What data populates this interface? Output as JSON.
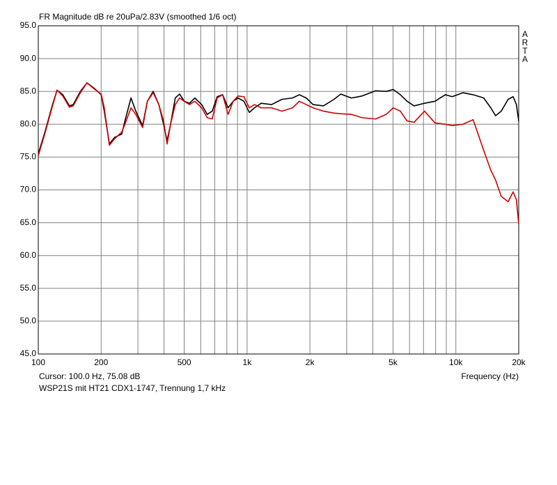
{
  "chart_data": {
    "type": "line",
    "title": "FR Magnitude dB re 20uPa/2.83V (smoothed 1/6 oct)",
    "watermark": "ARTA",
    "x_label": "Frequency (Hz)",
    "annotation": "Cursor: 100.0 Hz, 75.08 dB",
    "subtitle": "WSP21S mit HT21 CDX1-1747, Trennung 1,7 kHz",
    "x_scale": "log",
    "grid": true,
    "xlim": [
      100,
      20000
    ],
    "ylim": [
      45,
      95
    ],
    "xticks": [
      100,
      200,
      500,
      {
        "value": 1000,
        "label": "1k"
      },
      {
        "value": 2000,
        "label": "2k"
      },
      {
        "value": 5000,
        "label": "5k"
      },
      {
        "value": 10000,
        "label": "10k"
      },
      {
        "value": 20000,
        "label": "20k"
      }
    ],
    "xminor_ticks": [
      300,
      400,
      600,
      700,
      800,
      900,
      3000,
      4000,
      6000,
      7000,
      8000,
      9000
    ],
    "yticks": [
      {
        "value": 45,
        "label": "45.0"
      },
      {
        "value": 50,
        "label": "50.0"
      },
      {
        "value": 55,
        "label": "55.0"
      },
      {
        "value": 60,
        "label": "60.0"
      },
      {
        "value": 65,
        "label": "65.0"
      },
      {
        "value": 70,
        "label": "70.0"
      },
      {
        "value": 75,
        "label": "75.0"
      },
      {
        "value": 80,
        "label": "80.0"
      },
      {
        "value": 85,
        "label": "85.0"
      },
      {
        "value": 90,
        "label": "90.0"
      },
      {
        "value": 95,
        "label": "95.0"
      }
    ],
    "x": [
      100,
      108,
      117,
      123,
      131,
      141,
      147,
      159,
      171,
      185,
      200,
      207,
      219,
      232,
      251,
      260,
      278,
      293,
      316,
      333,
      355,
      378,
      398,
      414,
      430,
      453,
      475,
      500,
      530,
      562,
      606,
      644,
      681,
      719,
      764,
      811,
      858,
      905,
      966,
      1025,
      1085,
      1169,
      1311,
      1470,
      1650,
      1780,
      1920,
      2070,
      2320,
      2610,
      2810,
      3160,
      3550,
      4130,
      4640,
      5010,
      5420,
      5840,
      6310,
      7080,
      7940,
      8910,
      9600,
      10800,
      12100,
      13600,
      14700,
      15500,
      16500,
      17800,
      18800,
      19500,
      20000
    ],
    "series": [
      {
        "color": "#000000",
        "values": [
          75.5,
          79,
          83,
          85.2,
          84.5,
          82.8,
          83,
          85,
          86.3,
          85.5,
          84.5,
          82,
          77,
          78,
          78.5,
          80.5,
          84,
          82,
          79.8,
          83.5,
          85,
          83,
          80,
          77.5,
          80,
          84,
          84.6,
          83.5,
          83.2,
          84,
          83,
          81.5,
          82,
          84.2,
          84.5,
          82.5,
          83.5,
          84,
          83.5,
          81.8,
          82.5,
          83.2,
          83,
          83.8,
          84,
          84.5,
          84,
          83,
          82.8,
          83.8,
          84.6,
          84,
          84.3,
          85.1,
          85,
          85.3,
          84.5,
          83.5,
          82.8,
          83.2,
          83.5,
          84.5,
          84.2,
          84.8,
          84.5,
          84,
          82.5,
          81.3,
          82,
          83.8,
          84.2,
          83,
          80.5
        ]
      },
      {
        "color": "#cc0000",
        "values": [
          75.2,
          78.8,
          82.8,
          85.2,
          84.3,
          82.6,
          82.8,
          84.8,
          86.3,
          85.4,
          84.6,
          82.5,
          76.8,
          77.8,
          78.8,
          80,
          82.5,
          81.5,
          79.5,
          83.5,
          84.8,
          83,
          80.5,
          77,
          80,
          83,
          84,
          83.5,
          83,
          83.5,
          82.5,
          81,
          80.8,
          84,
          84.5,
          81.5,
          83.5,
          84.3,
          84.2,
          82.5,
          83,
          82.5,
          82.5,
          82,
          82.5,
          83.5,
          83,
          82.5,
          82,
          81.7,
          81.6,
          81.5,
          81,
          80.8,
          81.5,
          82.5,
          82,
          80.5,
          80.3,
          82,
          80.2,
          80,
          79.8,
          80,
          80.7,
          76,
          73,
          71.5,
          69,
          68.2,
          69.7,
          68.5,
          64.8
        ]
      }
    ]
  }
}
